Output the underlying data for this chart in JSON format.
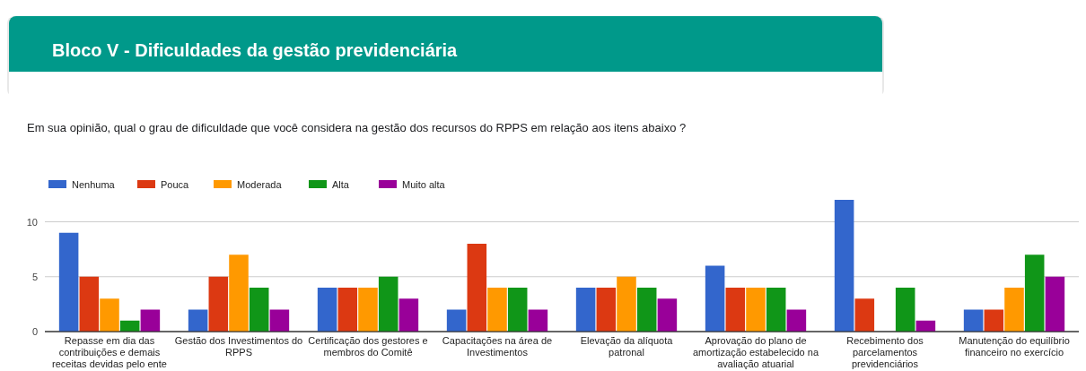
{
  "chart_data": {
    "type": "bar",
    "title": "Bloco V - Dificuldades da gestão previdenciária",
    "subtitle": "Em sua opinião, qual o grau de dificuldade que você considera na gestão dos recursos do RPPS em relação aos itens abaixo ?",
    "categories": [
      "Repasse em dia das contribuições e demais receitas devidas pelo ente",
      "Gestão dos Investimentos do RPPS",
      "Certificação dos gestores e membros do Comitê",
      "Capacitações na área de Investimentos",
      "Elevação da alíquota patronal",
      "Aprovação do plano de amortização estabelecido na avaliação atuarial",
      "Recebimento dos parcelamentos previdenciários",
      "Manutenção do equilíbrio financeiro no exercício"
    ],
    "series": [
      {
        "name": "Nenhuma",
        "color": "#3366cc",
        "values": [
          9,
          2,
          4,
          2,
          4,
          6,
          12,
          2
        ]
      },
      {
        "name": "Pouca",
        "color": "#dc3912",
        "values": [
          5,
          5,
          4,
          8,
          4,
          4,
          3,
          2
        ]
      },
      {
        "name": "Moderada",
        "color": "#ff9900",
        "values": [
          3,
          7,
          4,
          4,
          5,
          4,
          0,
          4
        ]
      },
      {
        "name": "Alta",
        "color": "#109618",
        "values": [
          1,
          4,
          5,
          4,
          4,
          4,
          4,
          7
        ]
      },
      {
        "name": "Muito alta",
        "color": "#990099",
        "values": [
          2,
          2,
          3,
          2,
          3,
          2,
          1,
          5
        ]
      }
    ],
    "ylim": [
      0,
      12
    ],
    "yticks": [
      0,
      5,
      10
    ],
    "grid": "y",
    "legend": "top left"
  }
}
